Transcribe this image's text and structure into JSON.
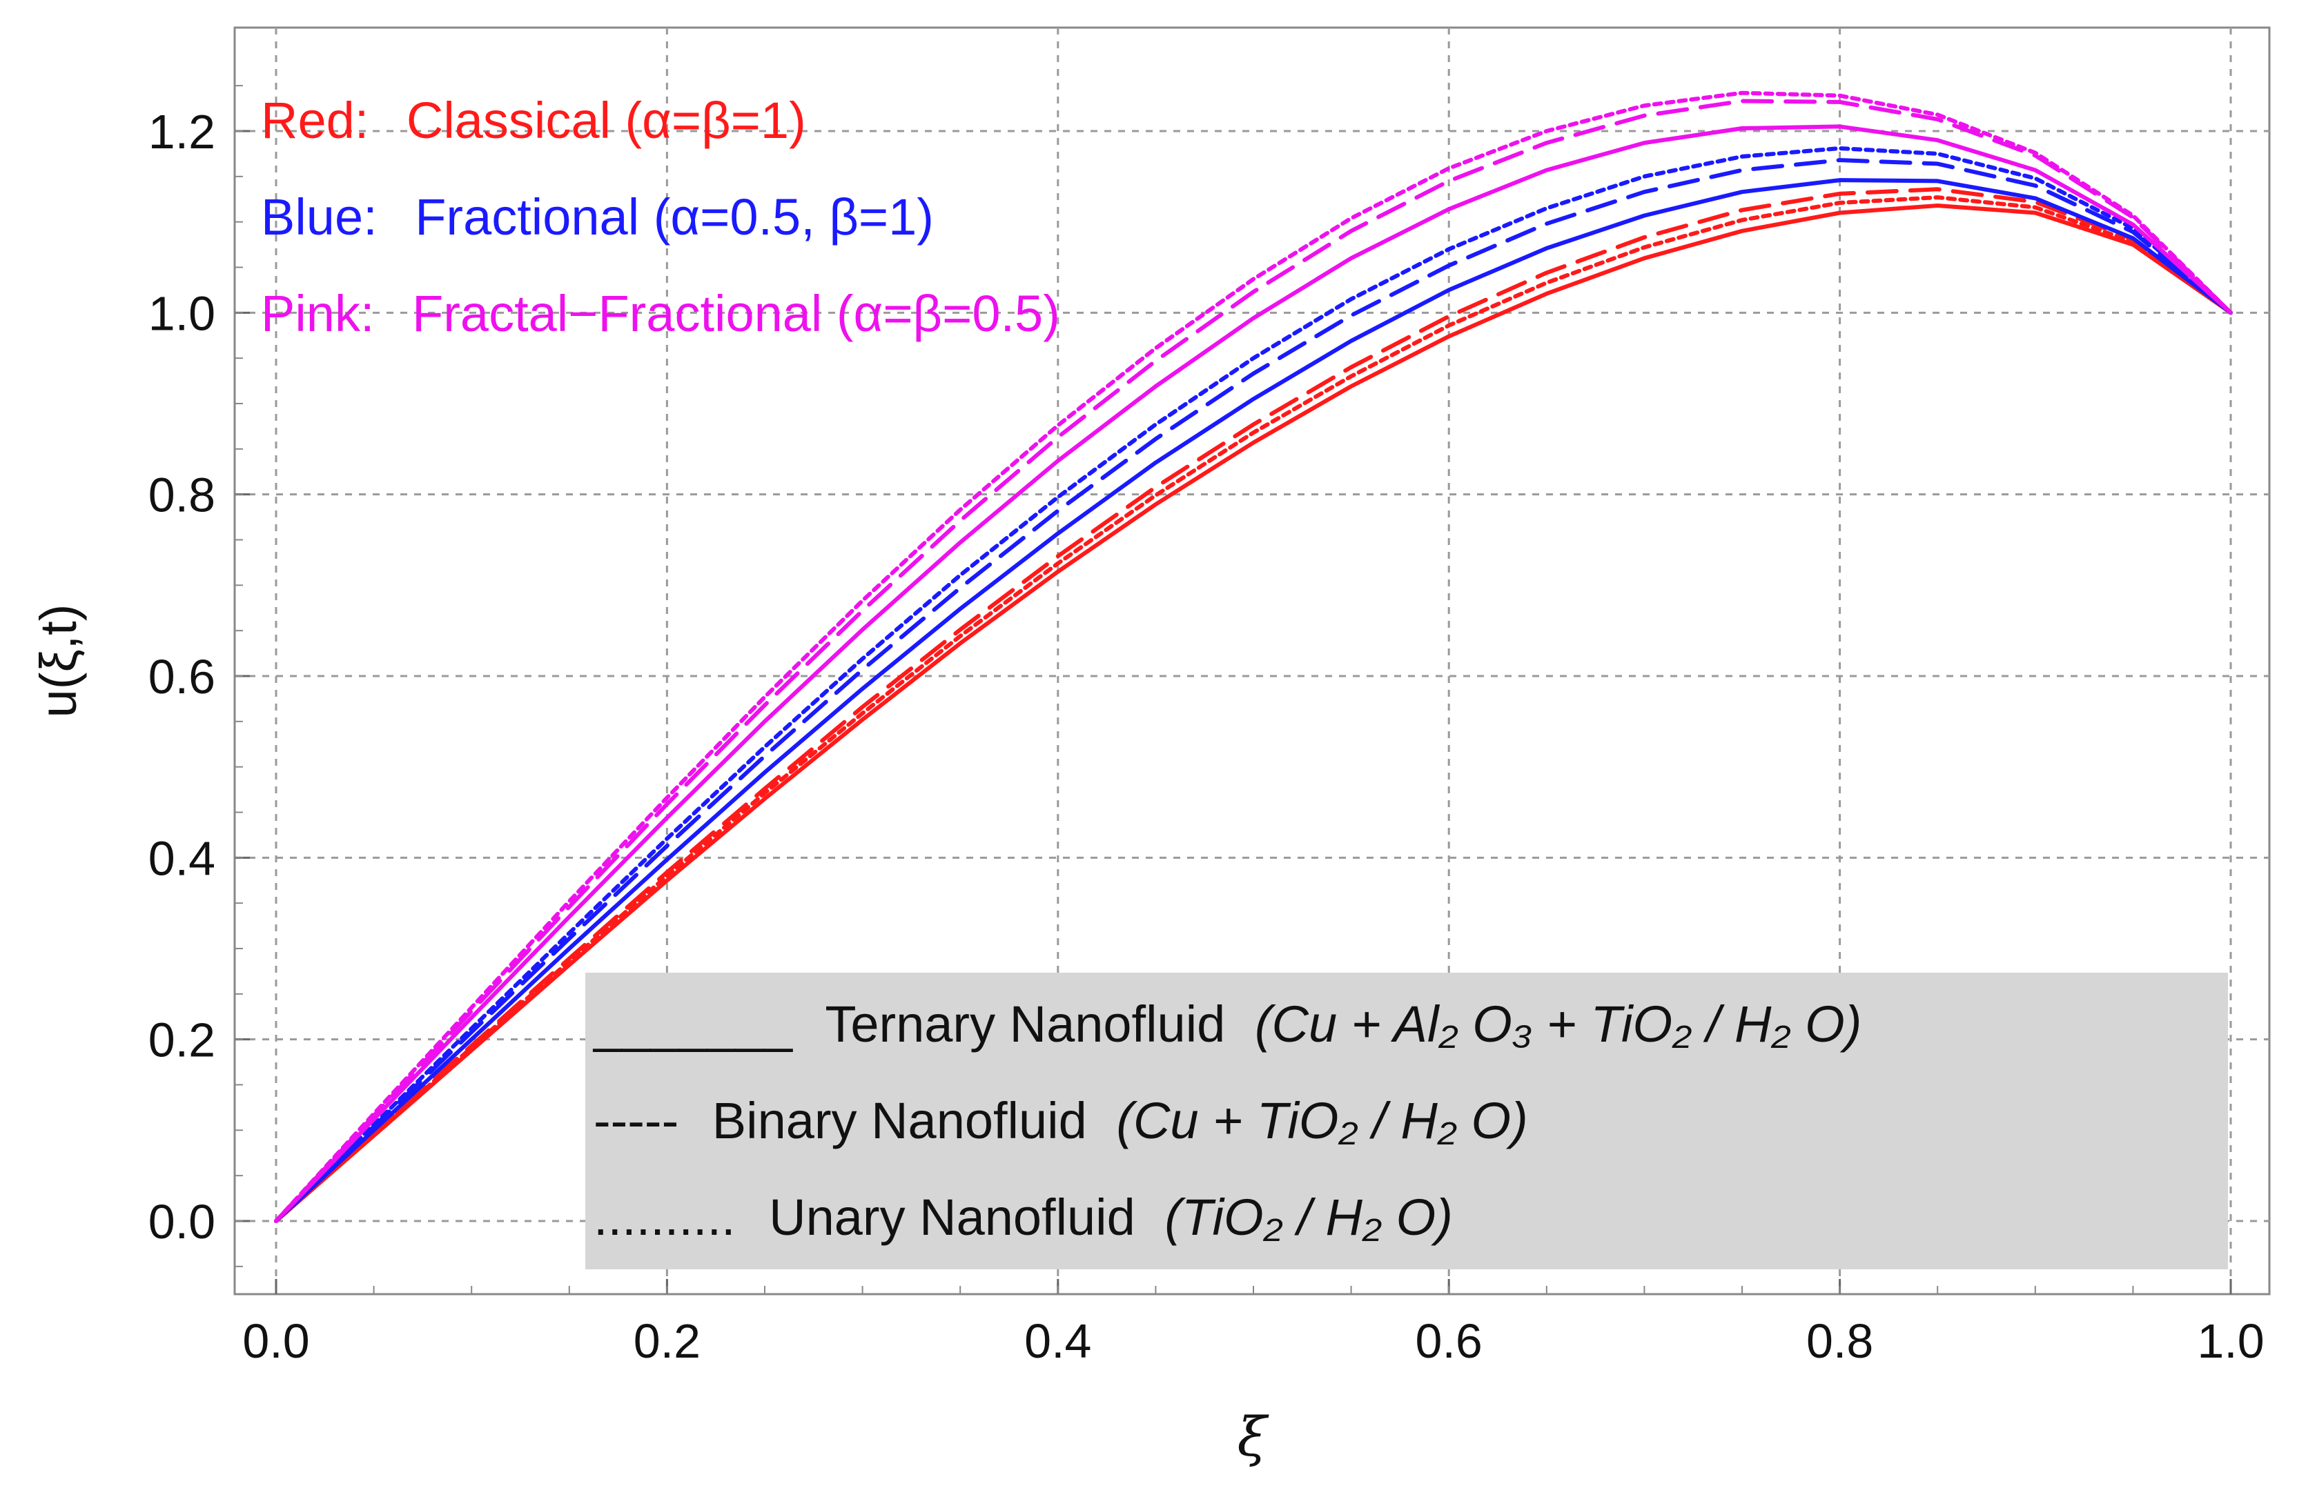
{
  "chart_data": {
    "type": "line",
    "title": "",
    "xlabel": "ξ",
    "ylabel": "u(ξ,t)",
    "xlim": [
      0.0,
      1.0
    ],
    "ylim": [
      -0.07,
      1.3
    ],
    "grid": true,
    "xticks": [
      "0.0",
      "0.2",
      "0.4",
      "0.6",
      "0.8",
      "1.0"
    ],
    "yticks": [
      "0.0",
      "0.2",
      "0.4",
      "0.6",
      "0.8",
      "1.0",
      "1.2"
    ],
    "x": [
      0.0,
      0.05,
      0.1,
      0.15,
      0.2,
      0.25,
      0.3,
      0.35,
      0.4,
      0.45,
      0.5,
      0.55,
      0.6,
      0.65,
      0.7,
      0.75,
      0.8,
      0.85,
      0.9,
      0.95,
      1.0
    ],
    "color_notes": [
      {
        "label": "Red:",
        "text": "Classical (α=β=1)",
        "color": "#ff1a1a"
      },
      {
        "label": "Blue:",
        "text": "Fractional (α=0.5, β=1)",
        "color": "#1a1aff"
      },
      {
        "label": "Pink:",
        "text": "Fractal−Fractional (α=β=0.5)",
        "color": "#ee11ee"
      }
    ],
    "legend": {
      "position": "bottom-right",
      "entries": [
        {
          "symbol": "_______",
          "style": "solid",
          "label": "Ternary Nanofluid",
          "formula": "(Cu + Al₂ O₃ + TiO₂ / H₂ O)"
        },
        {
          "symbol": "-----",
          "style": "dashed",
          "label": "Binary Nanofluid",
          "formula": "(Cu + TiO₂ / H₂ O)"
        },
        {
          "symbol": "..........",
          "style": "dotted",
          "label": "Unary Nanofluid",
          "formula": "(TiO₂ / H₂ O)"
        }
      ]
    },
    "series": [
      {
        "name": "Classical – Ternary",
        "color": "#ff1a1a",
        "style": "solid",
        "values": [
          0.0,
          0.094,
          0.188,
          0.282,
          0.375,
          0.465,
          0.552,
          0.636,
          0.715,
          0.789,
          0.857,
          0.919,
          0.974,
          1.021,
          1.06,
          1.09,
          1.11,
          1.118,
          1.11,
          1.075,
          1.0
        ]
      },
      {
        "name": "Classical – Binary",
        "color": "#ff1a1a",
        "style": "dashed",
        "values": [
          0.0,
          0.097,
          0.193,
          0.289,
          0.384,
          0.476,
          0.566,
          0.651,
          0.732,
          0.808,
          0.877,
          0.94,
          0.996,
          1.044,
          1.083,
          1.113,
          1.131,
          1.136,
          1.122,
          1.081,
          1.0
        ]
      },
      {
        "name": "Classical – Unary",
        "color": "#ff1a1a",
        "style": "dotted",
        "values": [
          0.0,
          0.095,
          0.191,
          0.286,
          0.38,
          0.471,
          0.559,
          0.644,
          0.724,
          0.799,
          0.868,
          0.93,
          0.986,
          1.033,
          1.072,
          1.102,
          1.121,
          1.127,
          1.116,
          1.078,
          1.0
        ]
      },
      {
        "name": "Fractional – Ternary",
        "color": "#1a1aff",
        "style": "solid",
        "values": [
          0.0,
          0.1,
          0.2,
          0.3,
          0.398,
          0.494,
          0.586,
          0.674,
          0.757,
          0.835,
          0.905,
          0.969,
          1.025,
          1.071,
          1.107,
          1.133,
          1.146,
          1.145,
          1.126,
          1.082,
          1.0
        ]
      },
      {
        "name": "Fractional – Binary",
        "color": "#1a1aff",
        "style": "dashed",
        "values": [
          0.0,
          0.104,
          0.208,
          0.311,
          0.413,
          0.512,
          0.607,
          0.697,
          0.782,
          0.861,
          0.933,
          0.997,
          1.052,
          1.098,
          1.133,
          1.157,
          1.168,
          1.164,
          1.14,
          1.089,
          1.0
        ]
      },
      {
        "name": "Fractional – Unary",
        "color": "#1a1aff",
        "style": "dotted",
        "values": [
          0.0,
          0.106,
          0.212,
          0.317,
          0.421,
          0.522,
          0.619,
          0.711,
          0.797,
          0.877,
          0.95,
          1.015,
          1.07,
          1.115,
          1.15,
          1.172,
          1.181,
          1.175,
          1.148,
          1.093,
          1.0
        ]
      },
      {
        "name": "Fractal-Fractional – Ternary",
        "color": "#ee11ee",
        "style": "solid",
        "values": [
          0.0,
          0.112,
          0.224,
          0.335,
          0.444,
          0.55,
          0.651,
          0.747,
          0.837,
          0.919,
          0.994,
          1.06,
          1.114,
          1.157,
          1.187,
          1.203,
          1.205,
          1.19,
          1.157,
          1.097,
          1.0
        ]
      },
      {
        "name": "Fractal-Fractional – Binary",
        "color": "#ee11ee",
        "style": "dashed",
        "values": [
          0.0,
          0.116,
          0.231,
          0.346,
          0.459,
          0.568,
          0.672,
          0.771,
          0.863,
          0.947,
          1.023,
          1.09,
          1.145,
          1.187,
          1.217,
          1.233,
          1.232,
          1.213,
          1.173,
          1.105,
          1.0
        ]
      },
      {
        "name": "Fractal-Fractional – Unary",
        "color": "#ee11ee",
        "style": "dotted",
        "values": [
          0.0,
          0.118,
          0.235,
          0.352,
          0.466,
          0.577,
          0.683,
          0.783,
          0.876,
          0.961,
          1.037,
          1.104,
          1.159,
          1.2,
          1.228,
          1.242,
          1.239,
          1.218,
          1.176,
          1.107,
          1.0
        ]
      }
    ]
  }
}
